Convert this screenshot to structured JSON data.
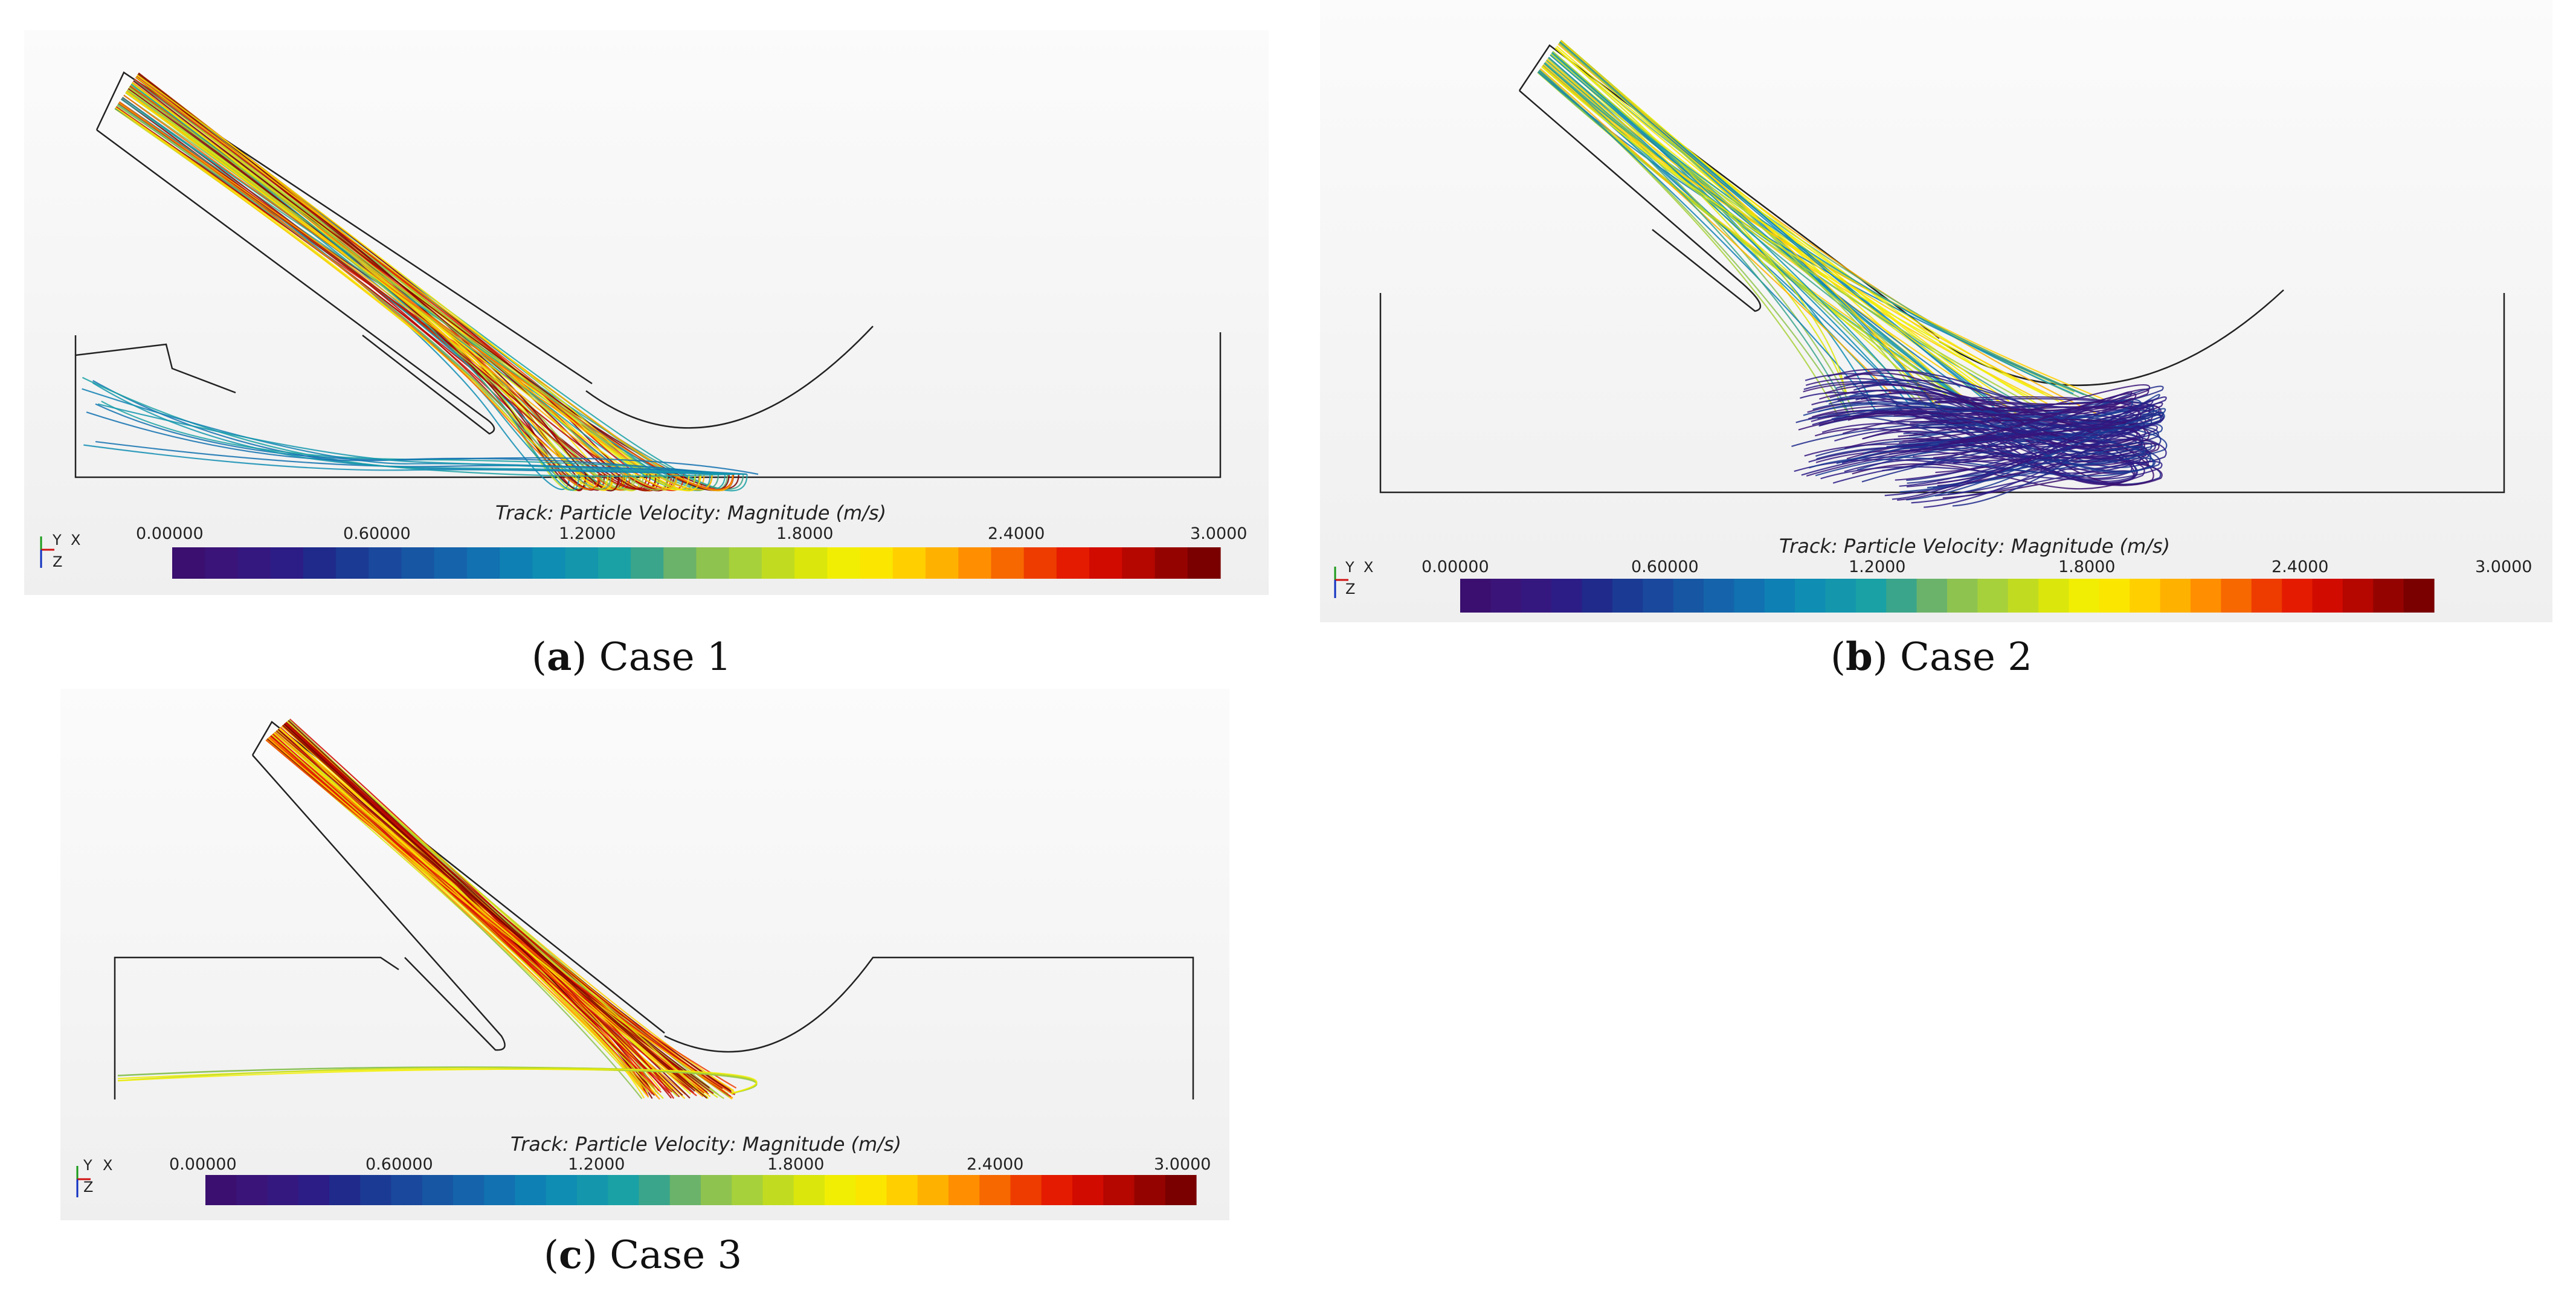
{
  "colorbar": {
    "title": "Track: Particle Velocity: Magnitude (m/s)",
    "ticks": [
      "0.00000",
      "0.60000",
      "1.2000",
      "1.8000",
      "2.4000",
      "3.0000"
    ],
    "min": 0,
    "max": 3,
    "colors": [
      "#3a0f6f",
      "#3a1478",
      "#35187f",
      "#2c1c86",
      "#1f2a8a",
      "#1b3a94",
      "#19489c",
      "#1756a3",
      "#1564ab",
      "#1271b0",
      "#0f80b3",
      "#0f8db3",
      "#1496ad",
      "#1aa1a5",
      "#3aa58a",
      "#6bb36a",
      "#8ec34f",
      "#a7d13a",
      "#c1dc20",
      "#dbe60c",
      "#f1ee04",
      "#fbe600",
      "#ffcf00",
      "#ffb100",
      "#ff8f00",
      "#f76800",
      "#ee3c00",
      "#e41b00",
      "#d10b00",
      "#b50600",
      "#950300",
      "#7a0000"
    ]
  },
  "axes_triad": {
    "y": "Y",
    "x": "X",
    "z": "Z"
  },
  "panels": [
    {
      "id": "a",
      "letter": "a",
      "label": "Case 1"
    },
    {
      "id": "b",
      "letter": "b",
      "label": "Case 2"
    },
    {
      "id": "c",
      "letter": "c",
      "label": "Case 3"
    }
  ]
}
